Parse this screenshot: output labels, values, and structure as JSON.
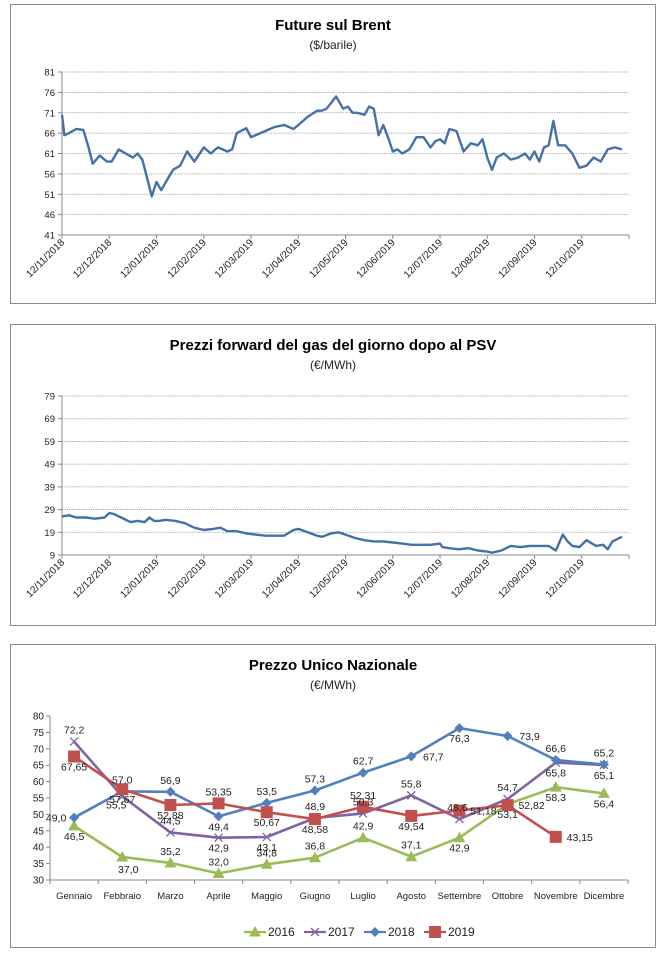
{
  "chart_data": [
    {
      "type": "line",
      "title": "Future sul Brent",
      "subtitle": "($/barile)",
      "xlabel": "",
      "ylabel": "",
      "ylim": [
        41,
        81
      ],
      "yticks": [
        "41",
        "46",
        "51",
        "56",
        "61",
        "66",
        "71",
        "76",
        "81"
      ],
      "xticks": [
        "12/11/2018",
        "12/12/2018",
        "12/01/2019",
        "12/02/2019",
        "12/03/2019",
        "12/04/2019",
        "12/05/2019",
        "12/06/2019",
        "12/07/2019",
        "12/08/2019",
        "12/09/2019",
        "12/10/2019"
      ],
      "grid": true,
      "color": "#4472a8",
      "series": [
        {
          "name": "Brent",
          "x_months_from_start": [
            0,
            0.05,
            0.15,
            0.3,
            0.45,
            0.55,
            0.65,
            0.8,
            0.95,
            1.05,
            1.2,
            1.35,
            1.5,
            1.6,
            1.7,
            1.8,
            1.9,
            2.0,
            2.1,
            2.25,
            2.35,
            2.5,
            2.65,
            2.8,
            3.0,
            3.15,
            3.3,
            3.5,
            3.6,
            3.7,
            3.9,
            4.0,
            4.2,
            4.4,
            4.5,
            4.7,
            4.9,
            5.0,
            5.2,
            5.4,
            5.5,
            5.6,
            5.7,
            5.8,
            5.95,
            6.05,
            6.15,
            6.25,
            6.4,
            6.5,
            6.6,
            6.7,
            6.8,
            6.9,
            7.0,
            7.1,
            7.2,
            7.35,
            7.5,
            7.65,
            7.8,
            7.9,
            8.0,
            8.1,
            8.2,
            8.35,
            8.5,
            8.65,
            8.8,
            8.9,
            9.0,
            9.1,
            9.2,
            9.35,
            9.5,
            9.65,
            9.8,
            9.9,
            10.0,
            10.1,
            10.2,
            10.3,
            10.4,
            10.5,
            10.65,
            10.8,
            10.95,
            11.1,
            11.25,
            11.4,
            11.55,
            11.7,
            11.85
          ],
          "values": [
            70.5,
            65.5,
            66,
            67,
            66.8,
            63,
            58.5,
            60.5,
            59,
            59,
            62,
            61,
            60,
            61,
            59.5,
            55,
            50.5,
            54,
            52,
            55,
            57,
            58,
            61.5,
            59,
            62.5,
            61,
            62.5,
            61.5,
            62,
            66,
            67.2,
            65,
            66,
            67,
            67.5,
            68,
            67,
            68,
            70,
            71.5,
            71.5,
            72,
            73.5,
            75,
            72,
            72.5,
            71,
            71,
            70.5,
            72.5,
            72,
            65.5,
            68,
            65,
            61.5,
            62,
            61,
            62,
            65,
            65,
            62.5,
            64,
            64.5,
            63.5,
            67,
            66.5,
            61.5,
            63.5,
            63,
            64.5,
            60,
            57,
            60,
            61,
            59.5,
            60,
            61,
            59.5,
            61.5,
            59,
            62.5,
            63,
            69,
            63,
            63,
            61,
            57.5,
            58,
            60,
            59,
            62,
            62.5,
            62
          ]
        }
      ]
    },
    {
      "type": "line",
      "title": "Prezzi forward del gas del giorno dopo al PSV",
      "subtitle": "(€/MWh)",
      "xlabel": "",
      "ylabel": "",
      "ylim": [
        9,
        79
      ],
      "yticks": [
        "9",
        "19",
        "29",
        "39",
        "49",
        "59",
        "69",
        "79"
      ],
      "xticks": [
        "12/11/2018",
        "12/12/2018",
        "12/01/2019",
        "12/02/2019",
        "12/03/2019",
        "12/04/2019",
        "12/05/2019",
        "12/06/2019",
        "12/07/2019",
        "12/08/2019",
        "12/09/2019",
        "12/10/2019"
      ],
      "grid": true,
      "color": "#4472a8",
      "series": [
        {
          "name": "PSV",
          "x_months_from_start": [
            0,
            0.15,
            0.3,
            0.5,
            0.7,
            0.9,
            1.0,
            1.1,
            1.25,
            1.45,
            1.6,
            1.75,
            1.85,
            1.95,
            2.05,
            2.2,
            2.4,
            2.6,
            2.8,
            3.0,
            3.2,
            3.35,
            3.5,
            3.7,
            3.9,
            4.1,
            4.3,
            4.5,
            4.7,
            4.9,
            5.0,
            5.2,
            5.4,
            5.5,
            5.7,
            5.85,
            6.0,
            6.2,
            6.4,
            6.6,
            6.8,
            7.0,
            7.2,
            7.4,
            7.6,
            7.8,
            8.0,
            8.05,
            8.2,
            8.4,
            8.6,
            8.8,
            9.0,
            9.1,
            9.3,
            9.5,
            9.7,
            9.9,
            10.1,
            10.3,
            10.45,
            10.6,
            10.7,
            10.8,
            10.95,
            11.1,
            11.3,
            11.45,
            11.55,
            11.65,
            11.85
          ],
          "values": [
            26,
            26.5,
            25.5,
            25.5,
            25,
            25.5,
            27.5,
            27,
            25.5,
            23.5,
            24,
            23.5,
            25.5,
            24,
            24,
            24.5,
            24,
            23,
            21,
            20,
            20.5,
            21,
            19.5,
            19.5,
            18.5,
            18,
            17.5,
            17.5,
            17.5,
            20,
            20.5,
            19,
            17.5,
            17,
            18.5,
            19,
            18,
            16.5,
            15.5,
            15,
            15,
            14.5,
            14,
            13.5,
            13.5,
            13.5,
            14,
            12.5,
            12,
            11.5,
            12,
            11,
            10.5,
            10,
            11,
            13,
            12.5,
            13,
            13,
            13,
            11,
            18,
            15,
            13,
            12.5,
            15.5,
            13,
            13.5,
            11.5,
            15,
            17
          ]
        }
      ]
    },
    {
      "type": "line",
      "title": "Prezzo Unico Nazionale",
      "subtitle": "(€/MWh)",
      "xlabel": "",
      "ylabel": "",
      "ylim": [
        30,
        80
      ],
      "yticks": [
        "30",
        "35",
        "40",
        "45",
        "50",
        "55",
        "60",
        "65",
        "70",
        "75",
        "80"
      ],
      "categories": [
        "Gennaio",
        "Febbraio",
        "Marzo",
        "Aprile",
        "Maggio",
        "Giugno",
        "Luglio",
        "Agosto",
        "Settembre",
        "Ottobre",
        "Novembre",
        "Dicembre"
      ],
      "grid": false,
      "legend": "bottom",
      "series": [
        {
          "name": "2016",
          "color": "#9bbb59",
          "marker": "triangle",
          "values": [
            46.5,
            37.0,
            35.2,
            32.0,
            34.8,
            36.8,
            42.9,
            37.1,
            42.9,
            53.1,
            58.3,
            56.4
          ],
          "labels": [
            "46,5",
            "37,0",
            "35,2",
            "32,0",
            "34,8",
            "36,8",
            "42,9",
            "37,1",
            "42,9",
            "53,1",
            "58,3",
            "56,4"
          ]
        },
        {
          "name": "2017",
          "color": "#8064a2",
          "marker": "x",
          "values": [
            72.2,
            55.5,
            44.5,
            42.9,
            43.1,
            48.9,
            50.3,
            55.8,
            48.6,
            54.7,
            65.8,
            65.1
          ],
          "labels": [
            "72,2",
            "55,5",
            "44,5",
            "42,9",
            "43,1",
            "48,9",
            "50,3",
            "55,8",
            "48,6",
            "54,7",
            "65,8",
            "65,1"
          ]
        },
        {
          "name": "2018",
          "color": "#4f81bd",
          "marker": "diamond",
          "values": [
            49.0,
            57.0,
            56.9,
            49.4,
            53.5,
            57.3,
            62.7,
            67.7,
            76.3,
            73.9,
            66.6,
            65.2
          ],
          "labels": [
            "49,0",
            "57,0",
            "56,9",
            "49,4",
            "53,5",
            "57,3",
            "62,7",
            "67,7",
            "76,3",
            "73,9",
            "66,6",
            "65,2"
          ]
        },
        {
          "name": "2019",
          "color": "#c0504d",
          "marker": "square",
          "values": [
            67.65,
            57.67,
            52.88,
            53.35,
            50.67,
            48.58,
            52.31,
            49.54,
            51.18,
            52.82,
            43.15
          ],
          "labels": [
            "67,65",
            "57,67",
            "52,88",
            "53,35",
            "50,67",
            "48,58",
            "52,31",
            "49,54",
            "51,18",
            "52,82",
            "43,15"
          ]
        }
      ]
    }
  ]
}
